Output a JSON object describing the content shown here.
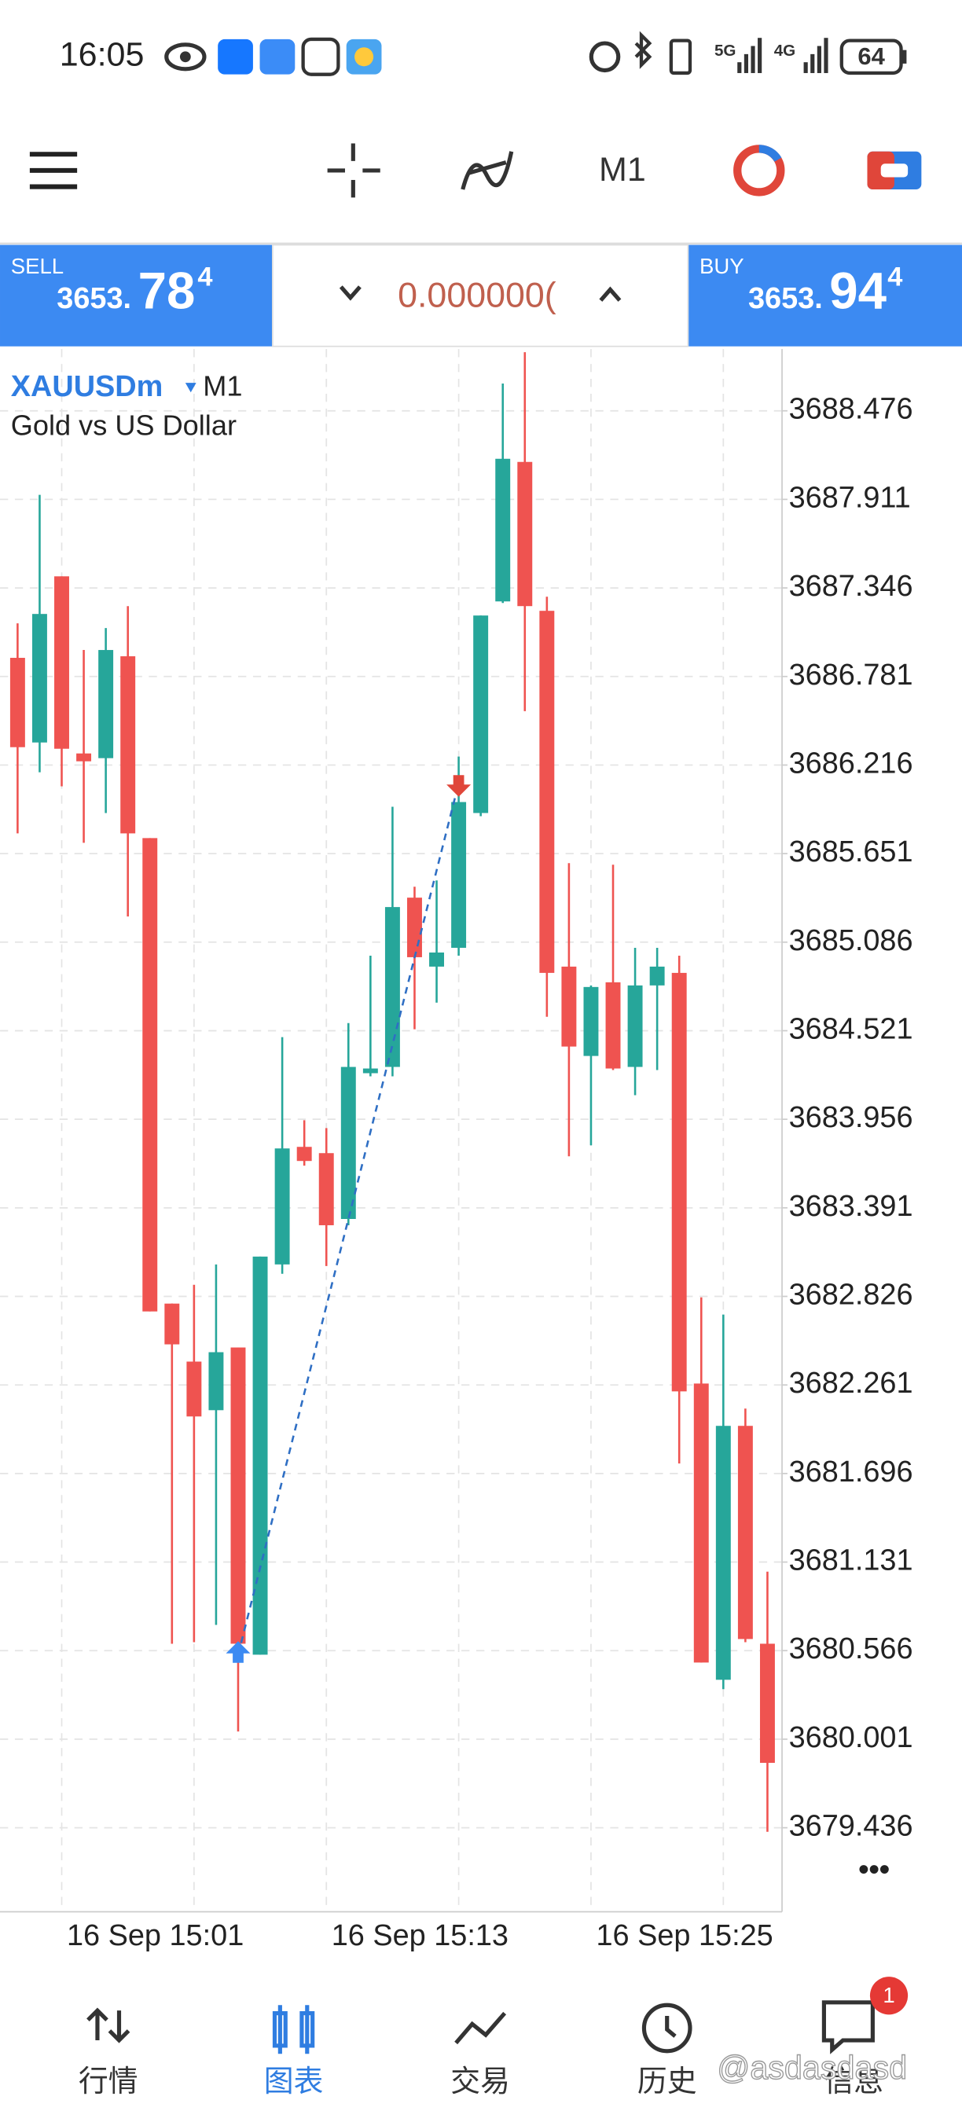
{
  "status_bar": {
    "time": "16:05",
    "network_1": "5G",
    "network_2": "4G",
    "battery": "64"
  },
  "toolbar": {
    "timeframe": "M1"
  },
  "trade_bar": {
    "sell": {
      "label": "SELL",
      "price_main": "3653.",
      "price_big": "78",
      "price_sup": "4"
    },
    "volume": "0.000000(",
    "buy": {
      "label": "BUY",
      "price_main": "3653.",
      "price_big": "94",
      "price_sup": "4"
    }
  },
  "chart_header": {
    "symbol": "XAUUSDm",
    "timeframe": "M1",
    "description": "Gold vs US Dollar"
  },
  "chart_data": {
    "type": "candlestick",
    "categories": [
      null,
      null,
      null,
      null,
      null,
      null,
      "16 Sep 15:01",
      null,
      null,
      null,
      null,
      null,
      null,
      null,
      null,
      null,
      null,
      null,
      "16 Sep 15:13",
      null,
      null,
      null,
      null,
      null,
      null,
      null,
      null,
      null,
      null,
      null,
      "16 Sep 15:25",
      null,
      null,
      null,
      null
    ],
    "open": [
      3686.9,
      3686.36,
      3687.42,
      3686.29,
      3686.26,
      3686.91,
      3685.75,
      3682.78,
      3682.41,
      3682.1,
      3682.5,
      3680.54,
      3683.03,
      3683.78,
      3683.74,
      3683.32,
      3684.25,
      3684.29,
      3685.37,
      3684.93,
      3685.05,
      3685.91,
      3687.26,
      3688.15,
      3687.2,
      3684.93,
      3684.36,
      3684.83,
      3684.29,
      3684.81,
      3684.89,
      3682.27,
      3680.38,
      3682.0,
      3680.61
    ],
    "high": [
      3687.12,
      3687.94,
      3687.42,
      3686.95,
      3687.09,
      3687.23,
      3685.75,
      3682.78,
      3682.9,
      3683.03,
      3682.5,
      3683.08,
      3684.48,
      3683.95,
      3683.9,
      3684.57,
      3685.0,
      3685.95,
      3685.44,
      3685.48,
      3686.27,
      3687.17,
      3688.65,
      3688.85,
      3687.29,
      3685.59,
      3684.81,
      3685.58,
      3685.05,
      3685.05,
      3685.0,
      3682.82,
      3682.71,
      3682.11,
      3681.07
    ],
    "low": [
      3685.78,
      3686.17,
      3686.08,
      3685.72,
      3685.91,
      3685.25,
      3682.73,
      3680.61,
      3680.62,
      3680.73,
      3680.05,
      3680.54,
      3682.97,
      3683.66,
      3683.02,
      3683.28,
      3684.23,
      3684.23,
      3684.53,
      3684.7,
      3685.0,
      3685.89,
      3687.25,
      3686.56,
      3684.61,
      3683.72,
      3683.79,
      3684.27,
      3684.11,
      3684.27,
      3681.76,
      3680.49,
      3680.32,
      3680.62,
      3679.41
    ],
    "close": [
      3686.33,
      3687.18,
      3686.32,
      3686.24,
      3686.95,
      3685.78,
      3682.73,
      3682.52,
      3682.06,
      3682.47,
      3680.61,
      3683.08,
      3683.77,
      3683.69,
      3683.28,
      3684.29,
      3684.28,
      3685.31,
      3684.99,
      3685.02,
      3685.98,
      3687.17,
      3688.17,
      3687.23,
      3684.89,
      3684.42,
      3684.8,
      3684.28,
      3684.81,
      3684.93,
      3682.22,
      3680.49,
      3682.0,
      3680.64,
      3679.85
    ],
    "up_color": "#26a69a",
    "down_color": "#ef5350",
    "ylim": [
      3678.9,
      3688.87
    ],
    "yticks": [
      3688.476,
      3687.911,
      3687.346,
      3686.781,
      3686.216,
      3685.651,
      3685.086,
      3684.521,
      3683.956,
      3683.391,
      3682.826,
      3682.261,
      3681.696,
      3681.131,
      3680.566,
      3680.001,
      3679.436
    ],
    "grid": true,
    "trade": {
      "open_index": 10,
      "open_price": 3680.54,
      "close_index": 20,
      "close_price": 3686.1
    }
  },
  "more": "•••",
  "nav": {
    "items": [
      "行情",
      "图表",
      "交易",
      "历史",
      "信息"
    ],
    "active": 1,
    "badge": "1"
  },
  "watermark": "@asdasdasd"
}
